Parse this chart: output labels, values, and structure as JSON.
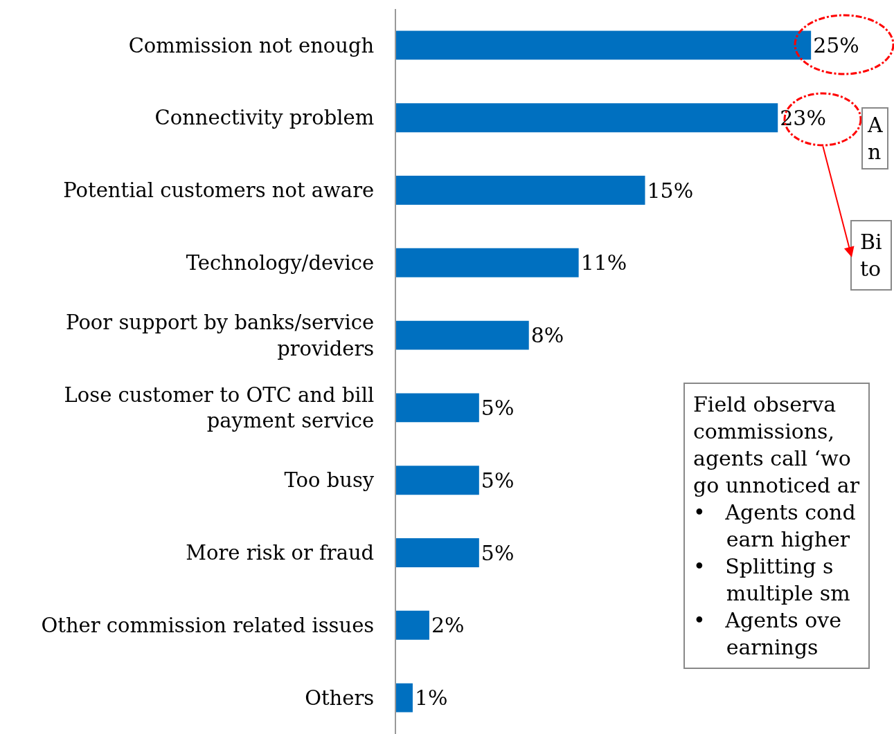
{
  "chart_data": {
    "type": "bar",
    "orientation": "horizontal",
    "color": "#0070c0",
    "categories": [
      "Commission not enough",
      "Connectivity problem",
      "Potential customers not aware",
      "Technology/device",
      "Poor support by banks/service providers",
      "Lose customer to OTC and bill payment service",
      "Too busy",
      "More risk or fraud",
      "Other commission related issues",
      "Others"
    ],
    "values": [
      25,
      23,
      15,
      11,
      8,
      5,
      5,
      5,
      2,
      1
    ],
    "value_labels": [
      "25%",
      "23%",
      "15%",
      "11%",
      "8%",
      "5%",
      "5%",
      "5%",
      "2%",
      "1%"
    ],
    "annotations": [
      "A\nn",
      "Bi\nto",
      "Field observa\ncommissions,\nagents call ‘wo\ngo unnoticed ar\n•   Agents cond\n     earn higher\n•   Splitting s\n     multiple sm\n•   Agents ove\n     earnings"
    ],
    "legend": false
  }
}
